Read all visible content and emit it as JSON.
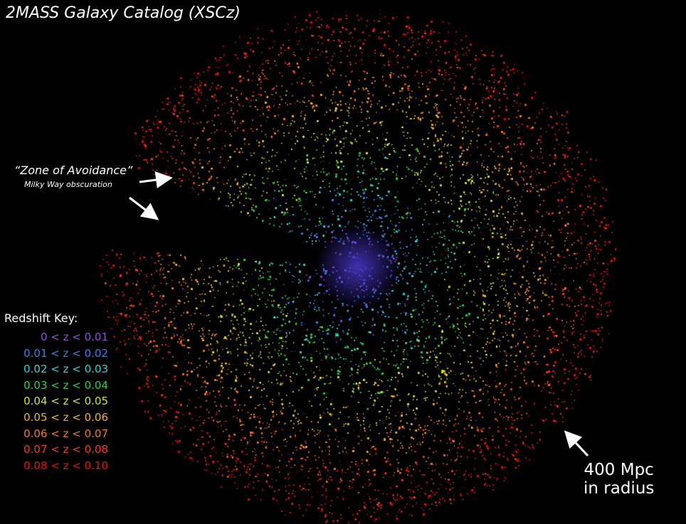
{
  "title": "2MASS Galaxy Catalog (XSCz)",
  "zone_of_avoidance": {
    "label": "“Zone of Avoidance”",
    "sublabel": "Milky Way obscuration"
  },
  "redshift_key": {
    "title": "Redshift Key:",
    "entries": [
      {
        "label": "0 < z < 0.01",
        "color": "#8f4fd6"
      },
      {
        "label": "0.01 < z < 0.02",
        "color": "#3d7ee8"
      },
      {
        "label": "0.02 < z < 0.03",
        "color": "#34d3d0"
      },
      {
        "label": "0.03 < z < 0.04",
        "color": "#2fcf4a"
      },
      {
        "label": "0.04 < z < 0.05",
        "color": "#d8e23a"
      },
      {
        "label": "0.05 < z < 0.06",
        "color": "#e8b43c"
      },
      {
        "label": "0.06 < z < 0.07",
        "color": "#ee7a2a"
      },
      {
        "label": "0.07 < z < 0.08",
        "color": "#ee3e22"
      },
      {
        "label": "0.08 < z < 0.10",
        "color": "#e01414"
      }
    ]
  },
  "radius_note": {
    "line1": "400 Mpc",
    "line2": "in radius"
  },
  "colors": {
    "background": "#000000",
    "text": "#ffffff"
  }
}
